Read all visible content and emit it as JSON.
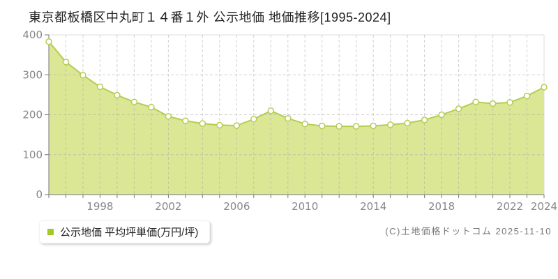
{
  "chart_data": {
    "type": "area",
    "title": "東京都板橋区中丸町１４番１外 公示地価 地価推移[1995-2024]",
    "x": [
      1995,
      1996,
      1997,
      1998,
      1999,
      2000,
      2001,
      2002,
      2003,
      2004,
      2005,
      2006,
      2007,
      2008,
      2009,
      2010,
      2011,
      2012,
      2013,
      2014,
      2015,
      2016,
      2017,
      2018,
      2019,
      2020,
      2021,
      2022,
      2023,
      2024
    ],
    "series": [
      {
        "name": "公示地価 平均坪単価(万円/坪)",
        "values": [
          383,
          332,
          299,
          270,
          249,
          232,
          219,
          196,
          185,
          178,
          174,
          173,
          189,
          210,
          191,
          177,
          172,
          171,
          171,
          172,
          175,
          179,
          187,
          200,
          215,
          232,
          228,
          231,
          247,
          269
        ]
      }
    ],
    "ylabel": "万円/坪",
    "ylim": [
      0,
      400
    ],
    "yticks": [
      0,
      100,
      200,
      300,
      400
    ],
    "xticks_labeled": [
      1998,
      2002,
      2006,
      2010,
      2014,
      2018,
      2022,
      2024
    ],
    "grid": true,
    "legend_position": "bottom-left",
    "colors": {
      "area_fill": "#dce795",
      "line": "#b3cd52",
      "marker_fill": "#ffffff",
      "marker_stroke": "#b3cd52",
      "grid": "#aaaaaa",
      "plot_border": "#dddddd",
      "axis": "#777777",
      "tick_label": "#888888",
      "title_text": "#222222",
      "legend_text": "#222222",
      "legend_bullet": "#a5c823",
      "footer_text": "#777777"
    }
  },
  "footer": {
    "copyright_text": "(C)土地価格ドットコム 2025-11-10"
  }
}
